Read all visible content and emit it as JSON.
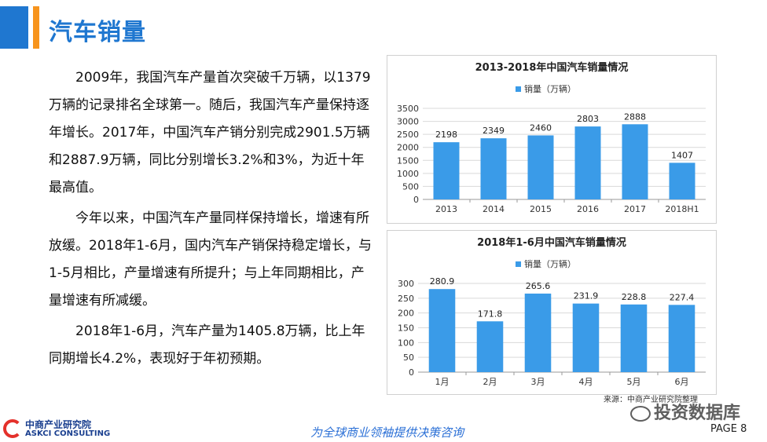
{
  "header": {
    "title": "汽车销量"
  },
  "body": {
    "paragraphs": [
      "2009年，我国汽车产量首次突破千万辆，以1379万辆的记录排名全球第一。随后，我国汽车产量保持逐年增长。2017年，中国汽车产销分别完成2901.5万辆和2887.9万辆，同比分别增长3.2%和3%，为近十年最高值。",
      "今年以来，中国汽车产量同样保持增长，增速有所放缓。2018年1-6月，国内汽车产销保持稳定增长，与1-5月相比，产量增速有所提升；与上年同期相比，产量增速有所减缓。",
      "2018年1-6月，汽车产量为1405.8万辆，比上年同期增长4.2%，表现好于年初预期。"
    ]
  },
  "chart_data": [
    {
      "type": "bar",
      "title": "2013-2018年中国汽车销量情况",
      "categories": [
        "2013",
        "2014",
        "2015",
        "2016",
        "2017",
        "2018H1"
      ],
      "series": [
        {
          "name": "销量（万辆）",
          "values": [
            2198,
            2349,
            2460,
            2803,
            2888,
            1407
          ]
        }
      ],
      "value_labels": [
        "2198",
        "2349",
        "2460",
        "2803",
        "2888",
        "1407"
      ],
      "yticks": [
        "0",
        "500",
        "1000",
        "1500",
        "2000",
        "2500",
        "3000",
        "3500"
      ],
      "ylim": [
        0,
        3500
      ],
      "grid": true,
      "legend": "top",
      "color": "#3a9be8"
    },
    {
      "type": "bar",
      "title": "2018年1-6月中国汽车销量情况",
      "categories": [
        "1月",
        "2月",
        "3月",
        "4月",
        "5月",
        "6月"
      ],
      "series": [
        {
          "name": "销量（万辆）",
          "values": [
            280.9,
            171.8,
            265.6,
            231.9,
            228.8,
            227.4
          ]
        }
      ],
      "value_labels": [
        "280.9",
        "171.8",
        "265.6",
        "231.9",
        "228.8",
        "227.4"
      ],
      "yticks": [
        "0",
        "50",
        "100",
        "150",
        "200",
        "250",
        "300"
      ],
      "ylim": [
        0,
        300
      ],
      "grid": true,
      "legend": "top",
      "color": "#3a9be8"
    }
  ],
  "footer": {
    "logo_cn": "中商产业研究院",
    "logo_en": "ASKCI CONSULTING",
    "slogan": "为全球商业领袖提供决策咨询",
    "source": "来源：中商产业研究院整理",
    "watermark": "投资数据库",
    "page": "PAGE 8"
  }
}
